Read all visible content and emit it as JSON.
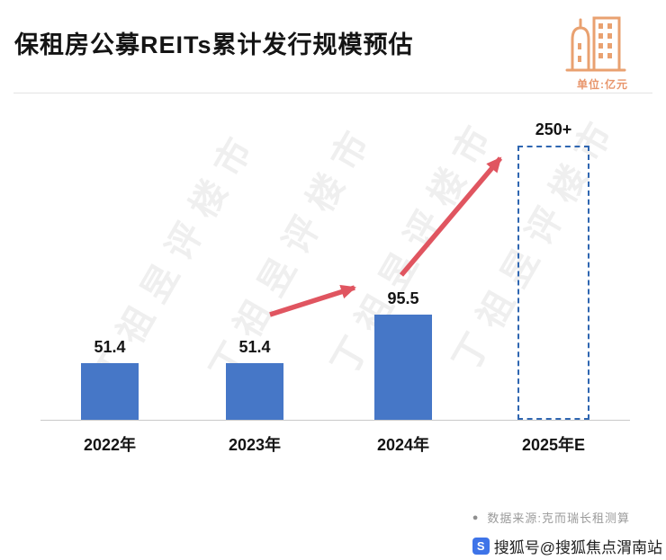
{
  "header": {
    "title": "保租房公募REITs累计发行规模预估",
    "unit_label": "单位:亿元"
  },
  "chart_data": {
    "type": "bar",
    "title": "保租房公募REITs累计发行规模预估",
    "unit": "亿元",
    "categories": [
      "2022年",
      "2023年",
      "2024年",
      "2025年E"
    ],
    "values": [
      51.4,
      51.4,
      95.5,
      250
    ],
    "value_labels": [
      "51.4",
      "51.4",
      "95.5",
      "250+"
    ],
    "forecast_index": 3,
    "ylim": [
      0,
      280
    ],
    "grid": false,
    "legend": "none",
    "bar_color": "#4677C7",
    "forecast_border_color": "#2F66B1",
    "arrow_color": "#E05560",
    "annotation": "两支红色上升箭头：由2023年指向2024年，再由2024年指向2025年E(虚线柱)"
  },
  "watermark": {
    "text": "丁祖昱评楼市"
  },
  "footer": {
    "bullet": "●",
    "source": "数据来源:克而瑞长租测算"
  },
  "branding": {
    "sohu_text": "搜狐号@搜狐焦点渭南站",
    "sohu_logo_letter": "S"
  }
}
